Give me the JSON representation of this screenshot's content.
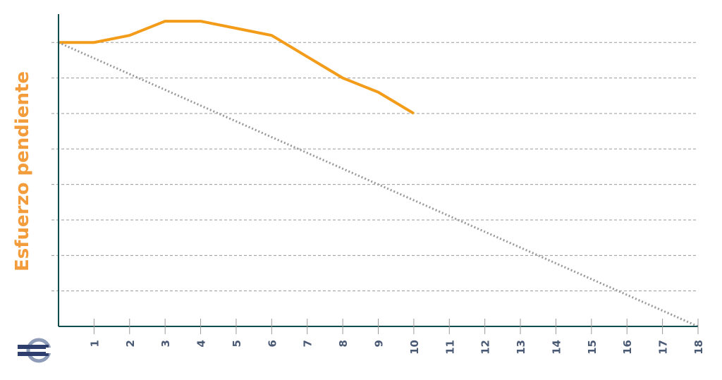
{
  "chart_data": {
    "type": "line",
    "title": "",
    "xlabel": "",
    "ylabel": "Esfuerzo pendiente",
    "x_ticks": [
      "1",
      "2",
      "3",
      "4",
      "5",
      "6",
      "7",
      "8",
      "9",
      "10",
      "11",
      "12",
      "13",
      "14",
      "15",
      "16",
      "17",
      "18"
    ],
    "xlim": [
      0,
      18
    ],
    "ylim": [
      0,
      8.8
    ],
    "grid": "horizontal dashed",
    "series": [
      {
        "style": "solid",
        "color": "#F39C1A",
        "x": [
          0,
          1,
          2,
          3,
          4,
          5,
          6,
          7,
          8,
          9,
          10
        ],
        "y": [
          8,
          8,
          8.2,
          8.6,
          8.6,
          8.4,
          8.2,
          7.6,
          7,
          6.6,
          6
        ]
      },
      {
        "style": "dotted",
        "color": "#999999",
        "x": [
          0,
          18
        ],
        "y": [
          8,
          0
        ]
      }
    ]
  },
  "colors": {
    "axis": "#0D4D4D",
    "grid": "#9A9A9A",
    "tick_label": "#4A5A75",
    "ylabel": "#F39C3C"
  },
  "icon": "sprint-logo-icon"
}
